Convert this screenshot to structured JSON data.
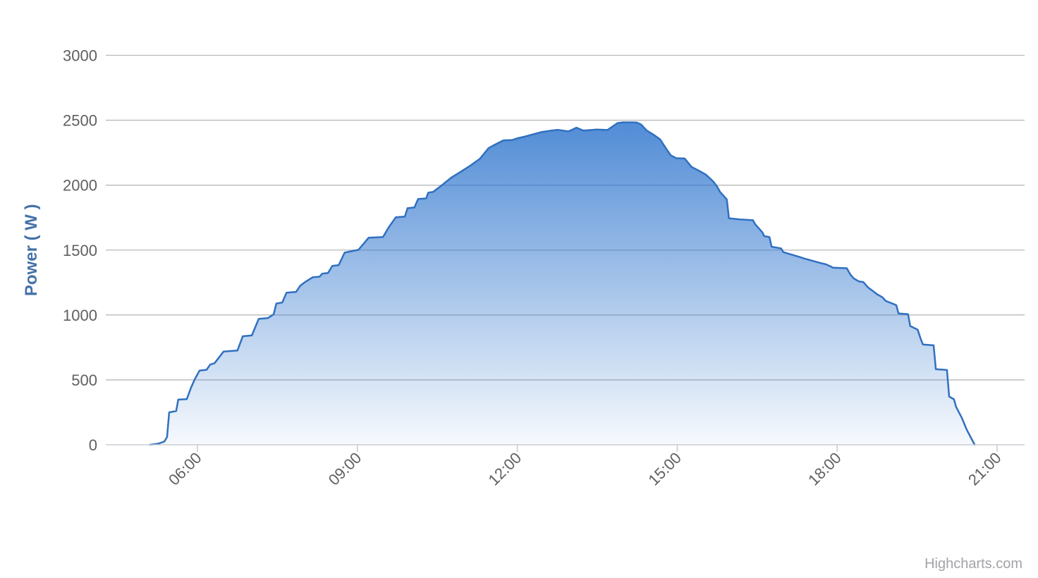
{
  "credits_label": "Highcharts.com",
  "chart_data": {
    "type": "area",
    "title": "",
    "xlabel": "",
    "ylabel": "Power ( W )",
    "ylim": [
      0,
      3000
    ],
    "y_ticks": [
      0,
      500,
      1000,
      1500,
      2000,
      2500,
      3000
    ],
    "x_ticks": [
      {
        "hour": 6,
        "label": "06:00"
      },
      {
        "hour": 9,
        "label": "09:00"
      },
      {
        "hour": 12,
        "label": "12:00"
      },
      {
        "hour": 15,
        "label": "15:00"
      },
      {
        "hour": 18,
        "label": "18:00"
      },
      {
        "hour": 21,
        "label": "21:00"
      }
    ],
    "grid_on": true,
    "legend": "none",
    "series_name": "Power",
    "colors": {
      "line": "#3070c0",
      "fill": "#2b73cd",
      "grid": "#b9b9b9",
      "axis_line": "#c9cdd4",
      "tick": "#c9cdd4",
      "label": "#606060",
      "y_title": "#4572A7",
      "credits": "#a3a3a8"
    },
    "points": [
      [
        5.11,
        0
      ],
      [
        5.26,
        8
      ],
      [
        5.38,
        25
      ],
      [
        5.43,
        60
      ],
      [
        5.47,
        250
      ],
      [
        5.6,
        260
      ],
      [
        5.64,
        348
      ],
      [
        5.8,
        352
      ],
      [
        5.88,
        440
      ],
      [
        5.95,
        505
      ],
      [
        6.04,
        572
      ],
      [
        6.17,
        578
      ],
      [
        6.24,
        618
      ],
      [
        6.32,
        628
      ],
      [
        6.49,
        718
      ],
      [
        6.75,
        726
      ],
      [
        6.85,
        836
      ],
      [
        7.02,
        842
      ],
      [
        7.15,
        970
      ],
      [
        7.32,
        976
      ],
      [
        7.43,
        1005
      ],
      [
        7.48,
        1088
      ],
      [
        7.59,
        1096
      ],
      [
        7.67,
        1172
      ],
      [
        7.85,
        1178
      ],
      [
        7.93,
        1226
      ],
      [
        8.02,
        1254
      ],
      [
        8.16,
        1290
      ],
      [
        8.29,
        1295
      ],
      [
        8.34,
        1318
      ],
      [
        8.45,
        1324
      ],
      [
        8.53,
        1378
      ],
      [
        8.65,
        1384
      ],
      [
        8.76,
        1480
      ],
      [
        9.02,
        1502
      ],
      [
        9.21,
        1595
      ],
      [
        9.48,
        1600
      ],
      [
        9.59,
        1676
      ],
      [
        9.72,
        1752
      ],
      [
        9.89,
        1758
      ],
      [
        9.94,
        1822
      ],
      [
        10.07,
        1828
      ],
      [
        10.14,
        1894
      ],
      [
        10.29,
        1898
      ],
      [
        10.33,
        1942
      ],
      [
        10.42,
        1948
      ],
      [
        10.6,
        2004
      ],
      [
        10.76,
        2058
      ],
      [
        10.92,
        2098
      ],
      [
        11.11,
        2148
      ],
      [
        11.3,
        2204
      ],
      [
        11.46,
        2285
      ],
      [
        11.57,
        2310
      ],
      [
        11.74,
        2345
      ],
      [
        11.91,
        2348
      ],
      [
        11.99,
        2360
      ],
      [
        12.15,
        2375
      ],
      [
        12.46,
        2410
      ],
      [
        12.63,
        2420
      ],
      [
        12.76,
        2426
      ],
      [
        12.96,
        2414
      ],
      [
        13.11,
        2443
      ],
      [
        13.24,
        2420
      ],
      [
        13.49,
        2428
      ],
      [
        13.69,
        2425
      ],
      [
        13.88,
        2478
      ],
      [
        13.99,
        2484
      ],
      [
        14.24,
        2483
      ],
      [
        14.32,
        2468
      ],
      [
        14.43,
        2420
      ],
      [
        14.55,
        2390
      ],
      [
        14.68,
        2352
      ],
      [
        14.81,
        2270
      ],
      [
        14.88,
        2230
      ],
      [
        14.98,
        2208
      ],
      [
        15.14,
        2205
      ],
      [
        15.27,
        2140
      ],
      [
        15.41,
        2110
      ],
      [
        15.54,
        2080
      ],
      [
        15.67,
        2030
      ],
      [
        15.74,
        1995
      ],
      [
        15.8,
        1950
      ],
      [
        15.93,
        1890
      ],
      [
        15.97,
        1745
      ],
      [
        16.17,
        1736
      ],
      [
        16.42,
        1730
      ],
      [
        16.46,
        1700
      ],
      [
        16.6,
        1635
      ],
      [
        16.63,
        1608
      ],
      [
        16.73,
        1600
      ],
      [
        16.77,
        1526
      ],
      [
        16.95,
        1512
      ],
      [
        16.99,
        1484
      ],
      [
        17.3,
        1446
      ],
      [
        17.39,
        1434
      ],
      [
        17.69,
        1400
      ],
      [
        17.79,
        1390
      ],
      [
        17.88,
        1374
      ],
      [
        17.92,
        1364
      ],
      [
        18.18,
        1360
      ],
      [
        18.25,
        1310
      ],
      [
        18.31,
        1282
      ],
      [
        18.41,
        1258
      ],
      [
        18.49,
        1254
      ],
      [
        18.58,
        1212
      ],
      [
        18.67,
        1184
      ],
      [
        18.74,
        1162
      ],
      [
        18.85,
        1136
      ],
      [
        18.91,
        1108
      ],
      [
        19.07,
        1082
      ],
      [
        19.11,
        1075
      ],
      [
        19.15,
        1012
      ],
      [
        19.33,
        1006
      ],
      [
        19.37,
        915
      ],
      [
        19.51,
        886
      ],
      [
        19.57,
        812
      ],
      [
        19.61,
        772
      ],
      [
        19.81,
        766
      ],
      [
        19.85,
        582
      ],
      [
        20.06,
        576
      ],
      [
        20.1,
        372
      ],
      [
        20.19,
        350
      ],
      [
        20.23,
        292
      ],
      [
        20.34,
        206
      ],
      [
        20.43,
        116
      ],
      [
        20.52,
        46
      ],
      [
        20.58,
        0
      ]
    ]
  }
}
